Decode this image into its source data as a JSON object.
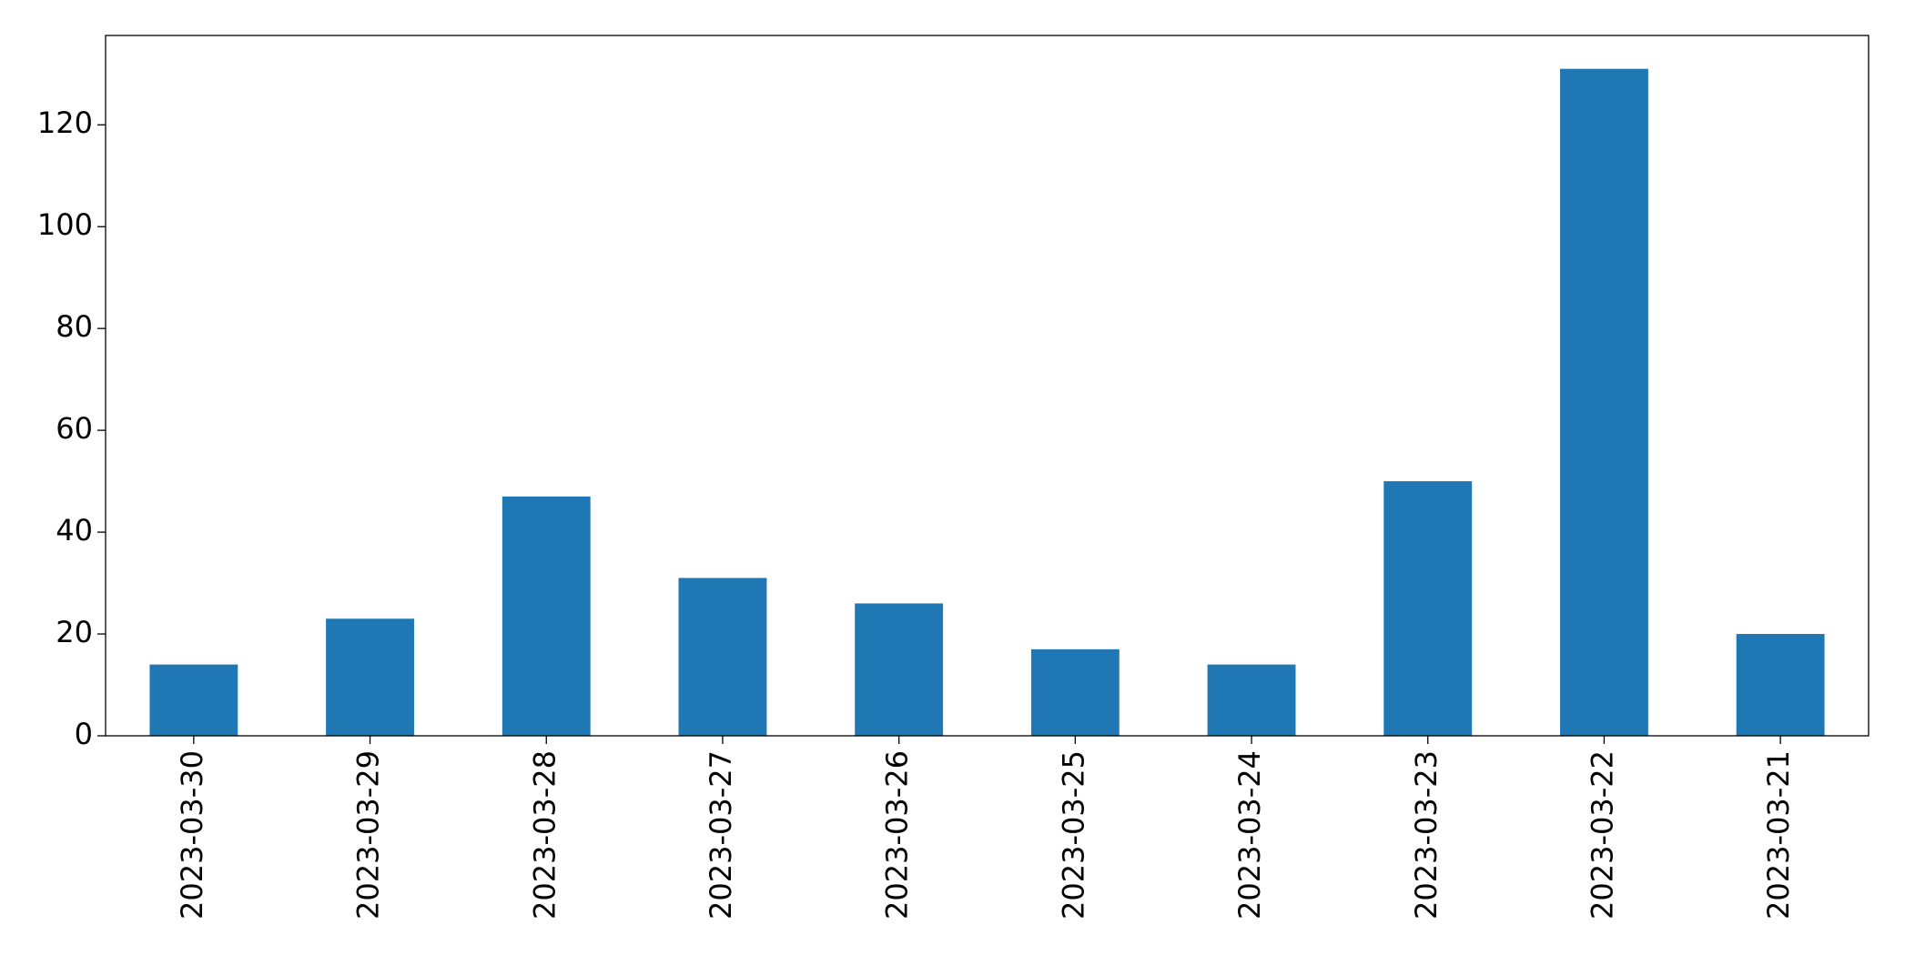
{
  "chart_data": {
    "type": "bar",
    "categories": [
      "2023-03-30",
      "2023-03-29",
      "2023-03-28",
      "2023-03-27",
      "2023-03-26",
      "2023-03-25",
      "2023-03-24",
      "2023-03-23",
      "2023-03-22",
      "2023-03-21"
    ],
    "values": [
      14,
      23,
      47,
      31,
      26,
      17,
      14,
      50,
      131,
      20
    ],
    "color": "#1f77b4",
    "ylim": [
      0,
      137.55
    ],
    "yticks": [
      0,
      20,
      40,
      60,
      80,
      100,
      120
    ],
    "grid": false
  }
}
